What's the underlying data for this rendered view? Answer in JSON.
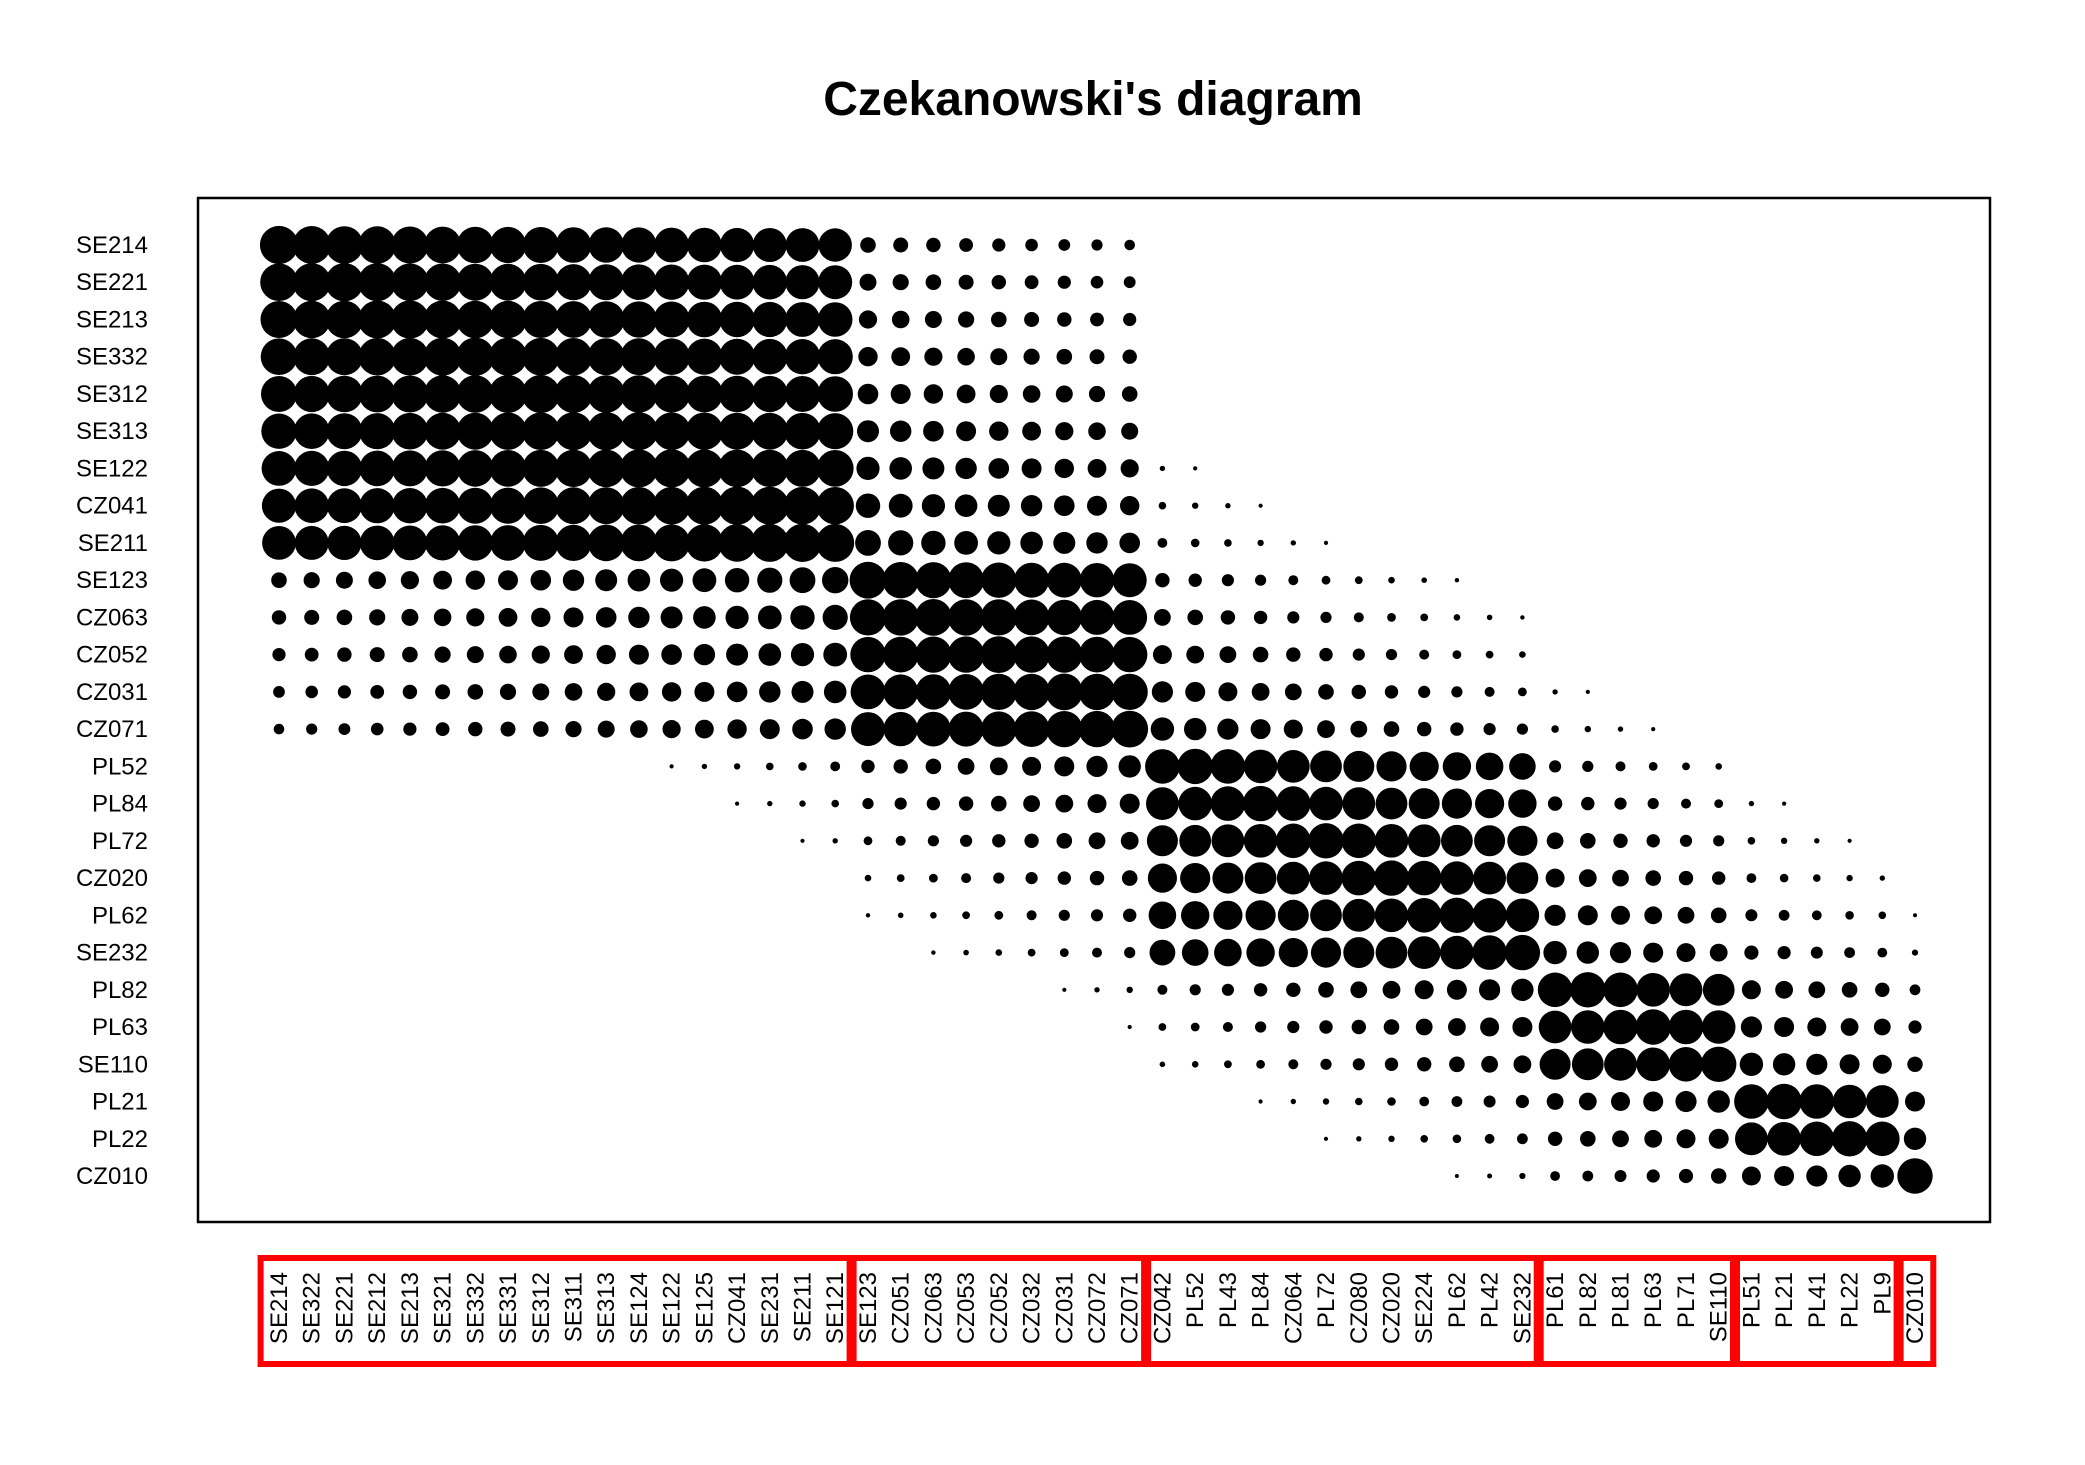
{
  "chart_data": {
    "type": "heatmap",
    "title": "Czekanowski's diagram",
    "xlabel": "",
    "ylabel": "",
    "row_labels": [
      "SE214",
      "SE221",
      "SE213",
      "SE332",
      "SE312",
      "SE313",
      "SE122",
      "CZ041",
      "SE211",
      "SE123",
      "CZ063",
      "CZ052",
      "CZ031",
      "CZ071",
      "PL52",
      "PL84",
      "PL72",
      "CZ020",
      "PL62",
      "SE232",
      "PL82",
      "PL63",
      "SE110",
      "PL21",
      "PL22",
      "CZ010"
    ],
    "column_labels": [
      "SE214",
      "SE322",
      "SE221",
      "SE212",
      "SE213",
      "SE321",
      "SE332",
      "SE331",
      "SE312",
      "SE311",
      "SE313",
      "SE124",
      "SE122",
      "SE125",
      "CZ041",
      "SE231",
      "SE211",
      "SE121",
      "SE123",
      "CZ051",
      "CZ063",
      "CZ053",
      "CZ052",
      "CZ032",
      "CZ031",
      "CZ072",
      "CZ071",
      "CZ042",
      "PL52",
      "PL43",
      "PL84",
      "CZ064",
      "PL72",
      "CZ080",
      "CZ020",
      "SE224",
      "PL62",
      "PL42",
      "SE232",
      "PL61",
      "PL82",
      "PL81",
      "PL63",
      "PL71",
      "SE110",
      "PL51",
      "PL21",
      "PL41",
      "PL22",
      "PL9",
      "CZ010"
    ],
    "row_col_index": [
      0,
      2,
      4,
      6,
      8,
      10,
      12,
      14,
      16,
      18,
      20,
      22,
      24,
      26,
      28,
      30,
      32,
      34,
      36,
      38,
      40,
      42,
      44,
      46,
      48,
      50
    ],
    "groups": [
      {
        "start": 0,
        "end": 17
      },
      {
        "start": 18,
        "end": 26
      },
      {
        "start": 27,
        "end": 38
      },
      {
        "start": 39,
        "end": 44
      },
      {
        "start": 45,
        "end": 49
      },
      {
        "start": 50,
        "end": 50
      }
    ],
    "size_levels": {
      "min": 0,
      "max": 5
    },
    "value_scale": "0 = empty, 5 = largest dot",
    "box_color": "#ff0000",
    "dot_color": "#000000"
  }
}
